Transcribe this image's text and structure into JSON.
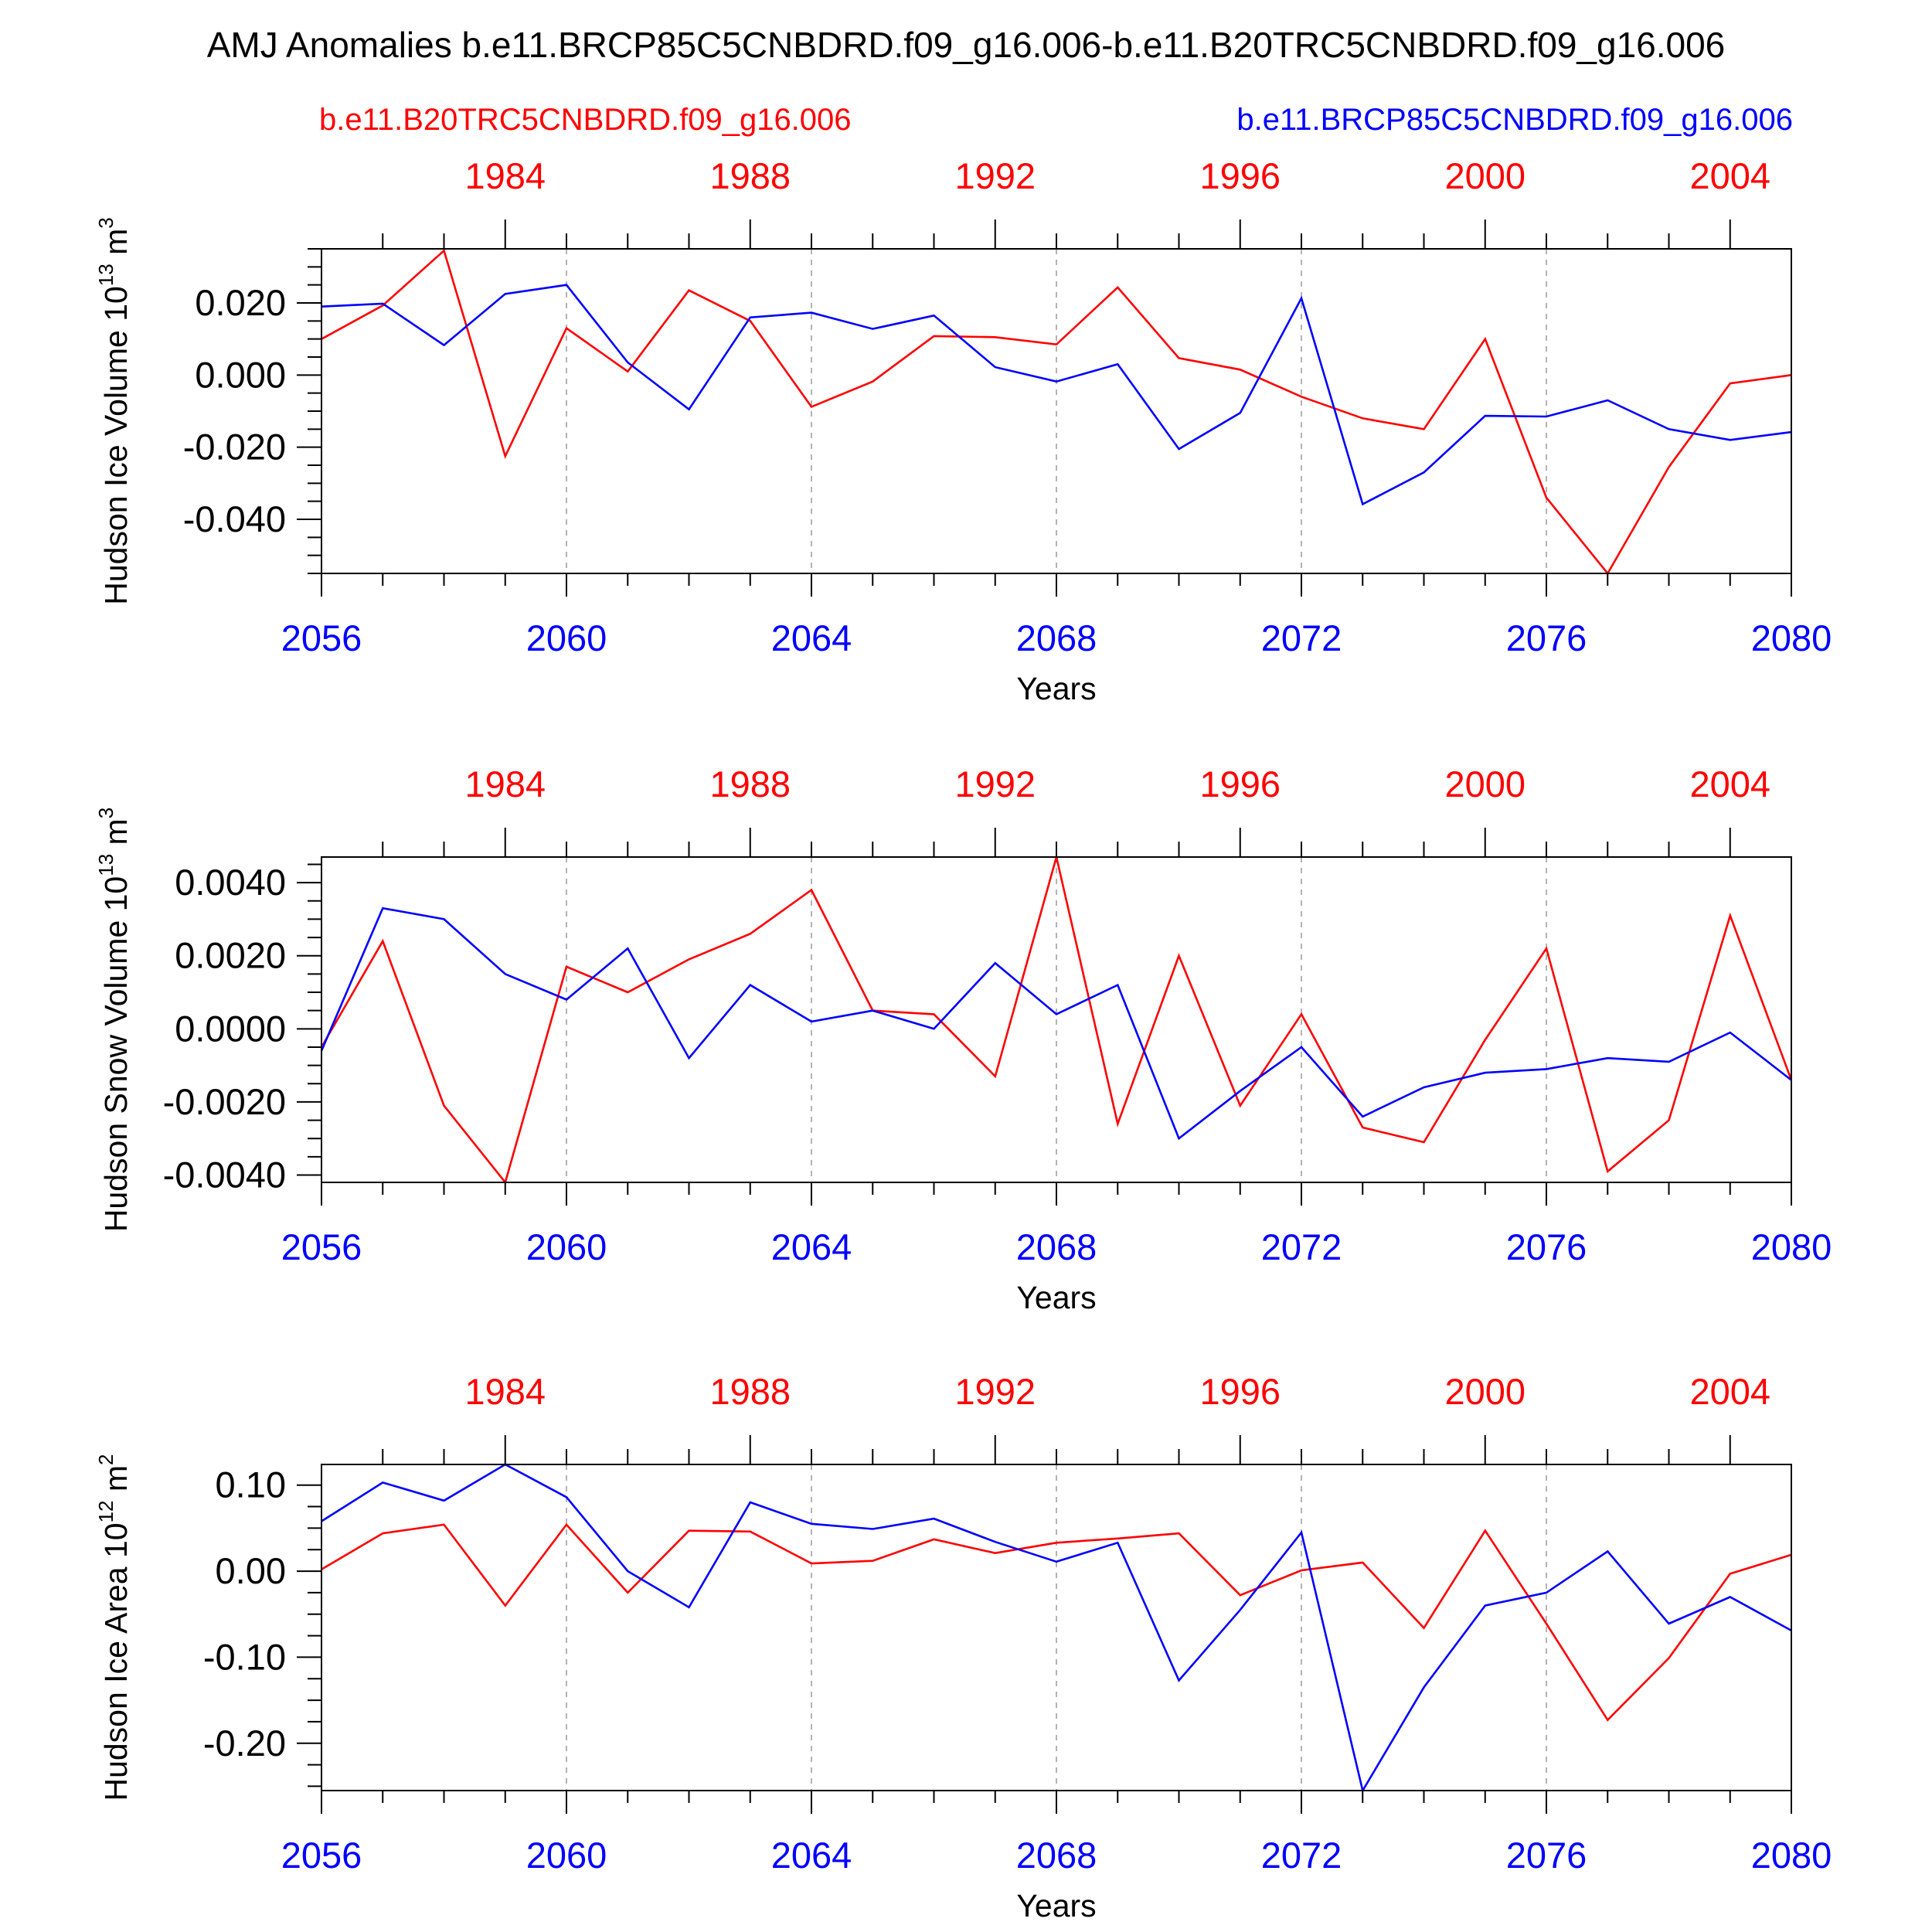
{
  "colors": {
    "control": "#ff0000",
    "scenario": "#0000ff",
    "axis": "#000000",
    "grid": "#9a9a9a"
  },
  "header": {
    "title": "AMJ Anomalies b.e11.BRCP85C5CNBDRD.f09_g16.006-b.e11.B20TRC5CNBDRD.f09_g16.006",
    "legend_control": "b.e11.B20TRC5CNBDRD.f09_g16.006",
    "legend_scenario": "b.e11.BRCP85C5CNBDRD.f09_g16.006"
  },
  "chart_data": [
    {
      "type": "line",
      "title": "",
      "xlabel": "Years",
      "ylabel": "Hudson Ice Volume 10",
      "ylabel_exp": "13",
      "ylabel_unit": " m",
      "ylabel_unit_exp": "3",
      "x": [
        2056,
        2057,
        2058,
        2059,
        2060,
        2061,
        2062,
        2063,
        2064,
        2065,
        2066,
        2067,
        2068,
        2069,
        2070,
        2071,
        2072,
        2073,
        2074,
        2075,
        2076,
        2077,
        2078,
        2079,
        2080
      ],
      "xlim": [
        2056,
        2080
      ],
      "ylim": [
        -0.055,
        0.035
      ],
      "yticks": [
        -0.04,
        -0.02,
        0.0,
        0.02
      ],
      "ytick_labels": [
        "-0.040",
        "-0.020",
        "0.000",
        "0.020"
      ],
      "yminor_step": 0.005,
      "bottom_ticks": [
        2056,
        2060,
        2064,
        2068,
        2072,
        2076,
        2080
      ],
      "bottom_tick_labels": [
        "2056",
        "2060",
        "2064",
        "2068",
        "2072",
        "2076",
        "2080"
      ],
      "top_ticks": [
        2059,
        2063,
        2067,
        2071,
        2075,
        2079
      ],
      "top_tick_labels": [
        "1984",
        "1988",
        "1992",
        "1996",
        "2000",
        "2004"
      ],
      "grid_x": [
        2060,
        2064,
        2068,
        2072,
        2076
      ],
      "series": [
        {
          "name": "b.e11.B20TRC5CNBDRD.f09_g16.006",
          "color": "#ff0000",
          "values": [
            0.01,
            0.0193,
            0.0345,
            -0.0225,
            0.013,
            0.001,
            0.0235,
            0.015,
            -0.0088,
            -0.0018,
            0.0108,
            0.0105,
            0.0085,
            0.0243,
            0.0047,
            0.0015,
            -0.006,
            -0.012,
            -0.015,
            0.01,
            -0.034,
            -0.055,
            -0.0255,
            -0.0023,
            0.0
          ]
        },
        {
          "name": "b.e11.BRCP85C5CNBDRD.f09_g16.006",
          "color": "#0000ff",
          "values": [
            0.019,
            0.0198,
            0.0083,
            0.0225,
            0.025,
            0.0035,
            -0.0095,
            0.016,
            0.0173,
            0.0128,
            0.0165,
            0.0022,
            -0.0018,
            0.003,
            -0.0205,
            -0.0105,
            0.0213,
            -0.0358,
            -0.027,
            -0.0113,
            -0.0115,
            -0.007,
            -0.015,
            -0.018,
            -0.0158
          ]
        }
      ]
    },
    {
      "type": "line",
      "title": "",
      "xlabel": "Years",
      "ylabel": "Hudson Snow Volume 10",
      "ylabel_exp": "13",
      "ylabel_unit": " m",
      "ylabel_unit_exp": "3",
      "x": [
        2056,
        2057,
        2058,
        2059,
        2060,
        2061,
        2062,
        2063,
        2064,
        2065,
        2066,
        2067,
        2068,
        2069,
        2070,
        2071,
        2072,
        2073,
        2074,
        2075,
        2076,
        2077,
        2078,
        2079,
        2080
      ],
      "xlim": [
        2056,
        2080
      ],
      "ylim": [
        -0.0042,
        0.0047
      ],
      "yticks": [
        -0.004,
        -0.002,
        0.0,
        0.002,
        0.004
      ],
      "ytick_labels": [
        "-0.0040",
        "-0.0020",
        "0.0000",
        "0.0020",
        "0.0040"
      ],
      "yminor_step": 0.0005,
      "bottom_ticks": [
        2056,
        2060,
        2064,
        2068,
        2072,
        2076,
        2080
      ],
      "bottom_tick_labels": [
        "2056",
        "2060",
        "2064",
        "2068",
        "2072",
        "2076",
        "2080"
      ],
      "top_ticks": [
        2059,
        2063,
        2067,
        2071,
        2075,
        2079
      ],
      "top_tick_labels": [
        "1984",
        "1988",
        "1992",
        "1996",
        "2000",
        "2004"
      ],
      "grid_x": [
        2060,
        2064,
        2068,
        2072,
        2076
      ],
      "series": [
        {
          "name": "b.e11.B20TRC5CNBDRD.f09_g16.006",
          "color": "#ff0000",
          "values": [
            -0.0005,
            0.0024,
            -0.0021,
            -0.0042,
            0.0017,
            0.001,
            0.0019,
            0.0026,
            0.0038,
            0.0005,
            0.0004,
            -0.0013,
            0.0047,
            -0.0026,
            0.002,
            -0.0021,
            0.0004,
            -0.0027,
            -0.0031,
            -0.0003,
            0.0022,
            -0.0039,
            -0.0025,
            0.0031,
            -0.0014
          ]
        },
        {
          "name": "b.e11.BRCP85C5CNBDRD.f09_g16.006",
          "color": "#0000ff",
          "values": [
            -0.0006,
            0.0033,
            0.003,
            0.0015,
            0.0008,
            0.0022,
            -0.0008,
            0.0012,
            0.0002,
            0.0005,
            0.0,
            0.0018,
            0.0004,
            0.0012,
            -0.003,
            -0.0017,
            -0.0005,
            -0.0024,
            -0.0016,
            -0.0012,
            -0.0011,
            -0.0008,
            -0.0009,
            -0.0001,
            -0.0014
          ]
        }
      ]
    },
    {
      "type": "line",
      "title": "",
      "xlabel": "Years",
      "ylabel": "Hudson Ice Area 10",
      "ylabel_exp": "12",
      "ylabel_unit": " m",
      "ylabel_unit_exp": "2",
      "x": [
        2056,
        2057,
        2058,
        2059,
        2060,
        2061,
        2062,
        2063,
        2064,
        2065,
        2066,
        2067,
        2068,
        2069,
        2070,
        2071,
        2072,
        2073,
        2074,
        2075,
        2076,
        2077,
        2078,
        2079,
        2080
      ],
      "xlim": [
        2056,
        2080
      ],
      "ylim": [
        -0.255,
        0.124
      ],
      "yticks": [
        -0.2,
        -0.1,
        0.0,
        0.1
      ],
      "ytick_labels": [
        "-0.20",
        "-0.10",
        "0.00",
        "0.10"
      ],
      "yminor_step": 0.025,
      "bottom_ticks": [
        2056,
        2060,
        2064,
        2068,
        2072,
        2076,
        2080
      ],
      "bottom_tick_labels": [
        "2056",
        "2060",
        "2064",
        "2068",
        "2072",
        "2076",
        "2080"
      ],
      "top_ticks": [
        2059,
        2063,
        2067,
        2071,
        2075,
        2079
      ],
      "top_tick_labels": [
        "1984",
        "1988",
        "1992",
        "1996",
        "2000",
        "2004"
      ],
      "grid_x": [
        2060,
        2064,
        2068,
        2072,
        2076
      ],
      "series": [
        {
          "name": "b.e11.B20TRC5CNBDRD.f09_g16.006",
          "color": "#ff0000",
          "values": [
            0.002,
            0.044,
            0.054,
            -0.04,
            0.054,
            -0.025,
            0.047,
            0.046,
            0.009,
            0.012,
            0.037,
            0.021,
            0.033,
            0.038,
            0.044,
            -0.028,
            0.001,
            0.01,
            -0.066,
            0.047,
            -0.061,
            -0.173,
            -0.101,
            -0.003,
            0.019
          ]
        },
        {
          "name": "b.e11.BRCP85C5CNBDRD.f09_g16.006",
          "color": "#0000ff",
          "values": [
            0.058,
            0.103,
            0.082,
            0.124,
            0.086,
            0.0,
            -0.042,
            0.08,
            0.055,
            0.049,
            0.061,
            0.034,
            0.011,
            0.033,
            -0.127,
            -0.045,
            0.045,
            -0.255,
            -0.135,
            -0.04,
            -0.025,
            0.023,
            -0.061,
            -0.03,
            -0.069
          ]
        }
      ]
    }
  ]
}
